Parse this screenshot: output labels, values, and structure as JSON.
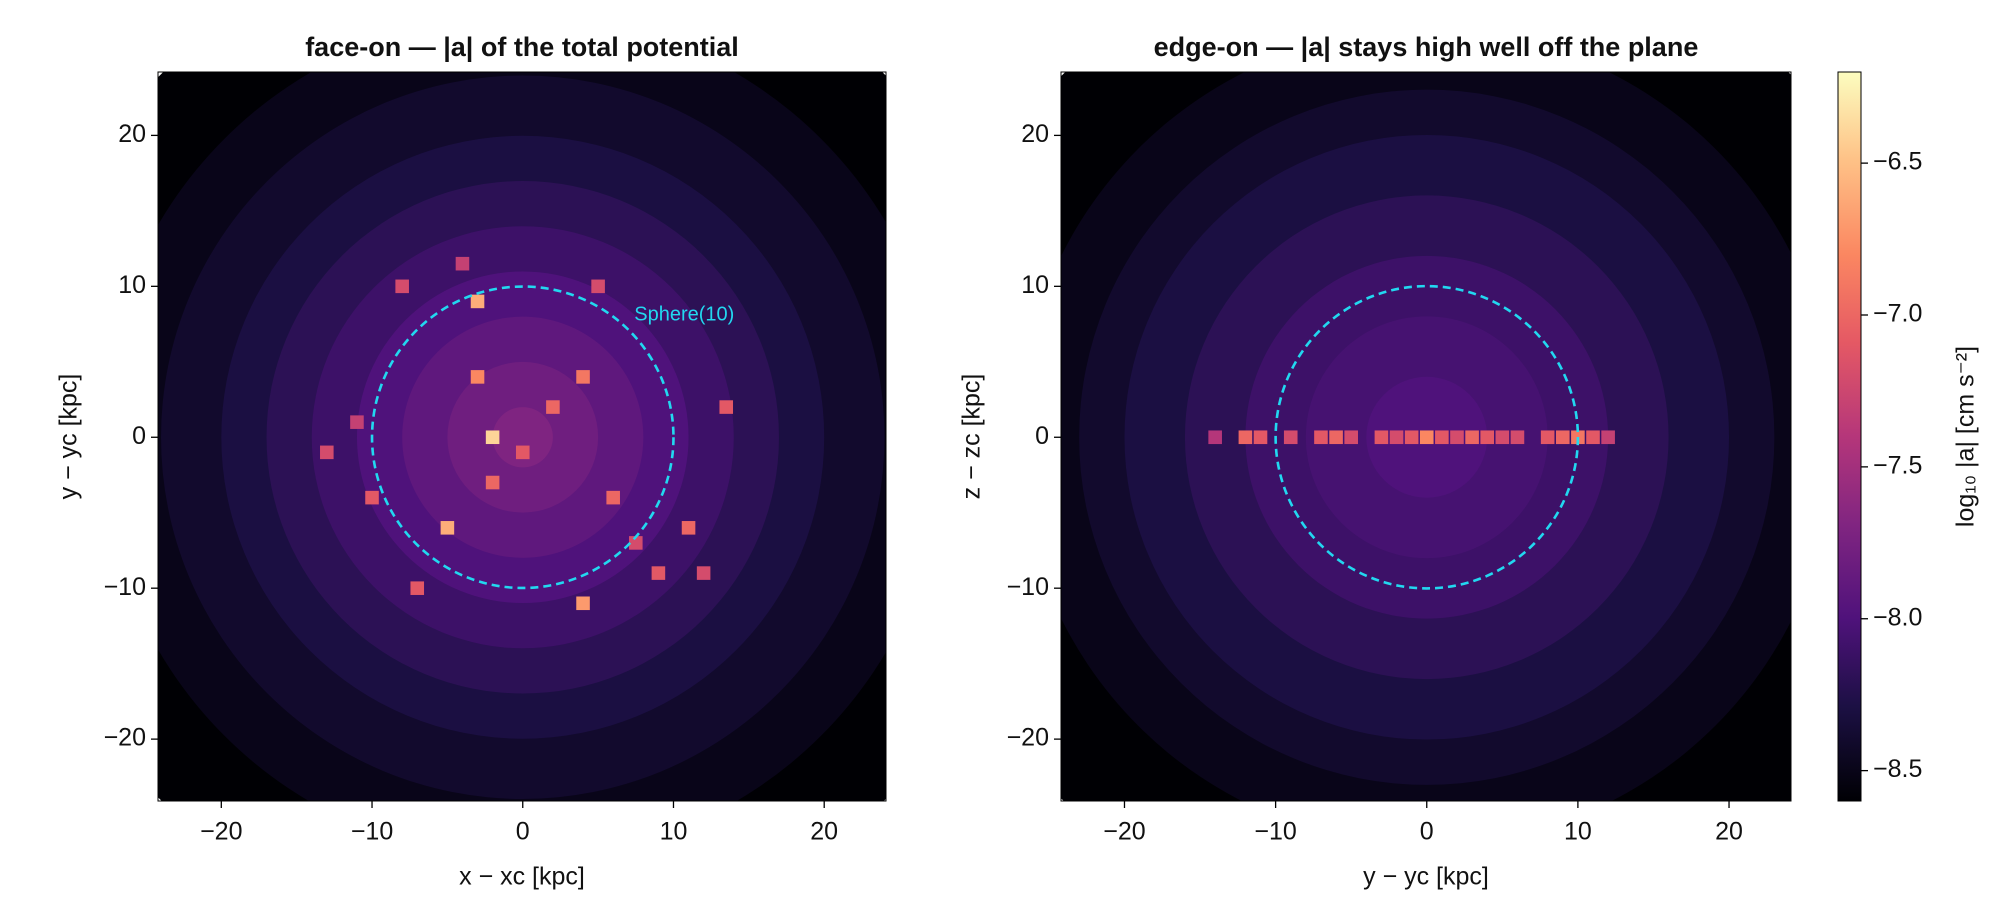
{
  "chart_data": [
    {
      "type": "heatmap",
      "title": "face-on — |a| of the total potential",
      "xlabel": "x − xc [kpc]",
      "ylabel": "y − yc [kpc]",
      "xlim": [
        -24.2,
        24.1
      ],
      "ylim": [
        -24.1,
        24.2
      ],
      "xticks": [
        {
          "value": -20,
          "label": "−20"
        },
        {
          "value": -10,
          "label": "−10"
        },
        0,
        10,
        20
      ],
      "yticks": [
        {
          "value": -20,
          "label": "−20"
        },
        {
          "value": -10,
          "label": "−10"
        },
        0,
        10,
        20
      ],
      "colormap": "magma",
      "radial_profile": {
        "r": [
          34,
          28,
          24,
          20,
          17,
          14,
          11,
          8,
          5,
          2
        ],
        "values": [
          -8.6,
          -8.5,
          -8.4,
          -8.3,
          -8.2,
          -8.1,
          -8.0,
          -7.9,
          -7.8,
          -7.7
        ]
      },
      "clumps": {
        "x": [
          -2,
          -3,
          -5,
          4,
          -3,
          4,
          -2,
          6,
          11,
          -10,
          13.5,
          -7,
          5,
          -13,
          2,
          -8,
          9,
          -4,
          0,
          7.5,
          -11,
          12
        ],
        "y": [
          0,
          9,
          -6,
          -11,
          4,
          4,
          -3,
          -4,
          -6,
          -4,
          2,
          -10,
          10,
          -1,
          2,
          10,
          -9,
          11.5,
          -1,
          -7,
          1,
          -9
        ],
        "values": [
          -6.4,
          -6.6,
          -6.6,
          -6.7,
          -6.8,
          -6.9,
          -7.0,
          -7.0,
          -7.0,
          -7.1,
          -7.1,
          -7.1,
          -7.2,
          -7.2,
          -7.0,
          -7.2,
          -7.1,
          -7.3,
          -7.1,
          -7.2,
          -7.3,
          -7.2
        ]
      },
      "circle": {
        "radius": 10,
        "color": "#22d8f0",
        "label": "Sphere(10)"
      }
    },
    {
      "type": "heatmap",
      "title": "edge-on — |a| stays high well off the plane",
      "xlabel": "y − yc [kpc]",
      "ylabel": "z − zc [kpc]",
      "xlim": [
        -24.2,
        24.1
      ],
      "ylim": [
        -24.1,
        24.2
      ],
      "xticks": [
        {
          "value": -20,
          "label": "−20"
        },
        {
          "value": -10,
          "label": "−10"
        },
        0,
        10,
        20
      ],
      "yticks": [
        {
          "value": -20,
          "label": "−20"
        },
        {
          "value": -10,
          "label": "−10"
        },
        0,
        10,
        20
      ],
      "colormap": "magma",
      "radial_profile": {
        "r": [
          34,
          27,
          23,
          20,
          16,
          12,
          8,
          4
        ],
        "values": [
          -8.6,
          -8.5,
          -8.4,
          -8.3,
          -8.2,
          -8.1,
          -8.05,
          -8.0
        ]
      },
      "clumps": {
        "x": [
          -14,
          -12,
          -11,
          -9,
          -7,
          -6,
          -5,
          -3,
          -2,
          -1,
          0,
          1,
          2,
          3,
          4,
          5,
          6,
          8,
          9,
          10,
          11,
          12
        ],
        "y": [
          0,
          0,
          0,
          0,
          0,
          0,
          0,
          0,
          0,
          0,
          0,
          0,
          0,
          0,
          0,
          0,
          0,
          0,
          0,
          0,
          0,
          0
        ],
        "values": [
          -7.4,
          -7.0,
          -7.1,
          -7.2,
          -7.1,
          -7.0,
          -7.2,
          -7.1,
          -7.2,
          -7.1,
          -6.8,
          -7.1,
          -7.2,
          -7.0,
          -7.1,
          -7.2,
          -7.2,
          -7.1,
          -7.0,
          -6.9,
          -7.1,
          -7.3
        ]
      },
      "circle": {
        "radius": 10,
        "color": "#22d8f0"
      }
    },
    {
      "type": "colorbar",
      "label": "log₁₀ |a|  [cm s⁻²]",
      "colormap": "magma",
      "clim": [
        -8.6,
        -6.2
      ],
      "ticks": [
        {
          "value": -8.5,
          "label": "−8.5"
        },
        {
          "value": -8.0,
          "label": "−8.0"
        },
        {
          "value": -7.5,
          "label": "−7.5"
        },
        {
          "value": -7.0,
          "label": "−7.0"
        },
        {
          "value": -6.5,
          "label": "−6.5"
        }
      ]
    }
  ]
}
